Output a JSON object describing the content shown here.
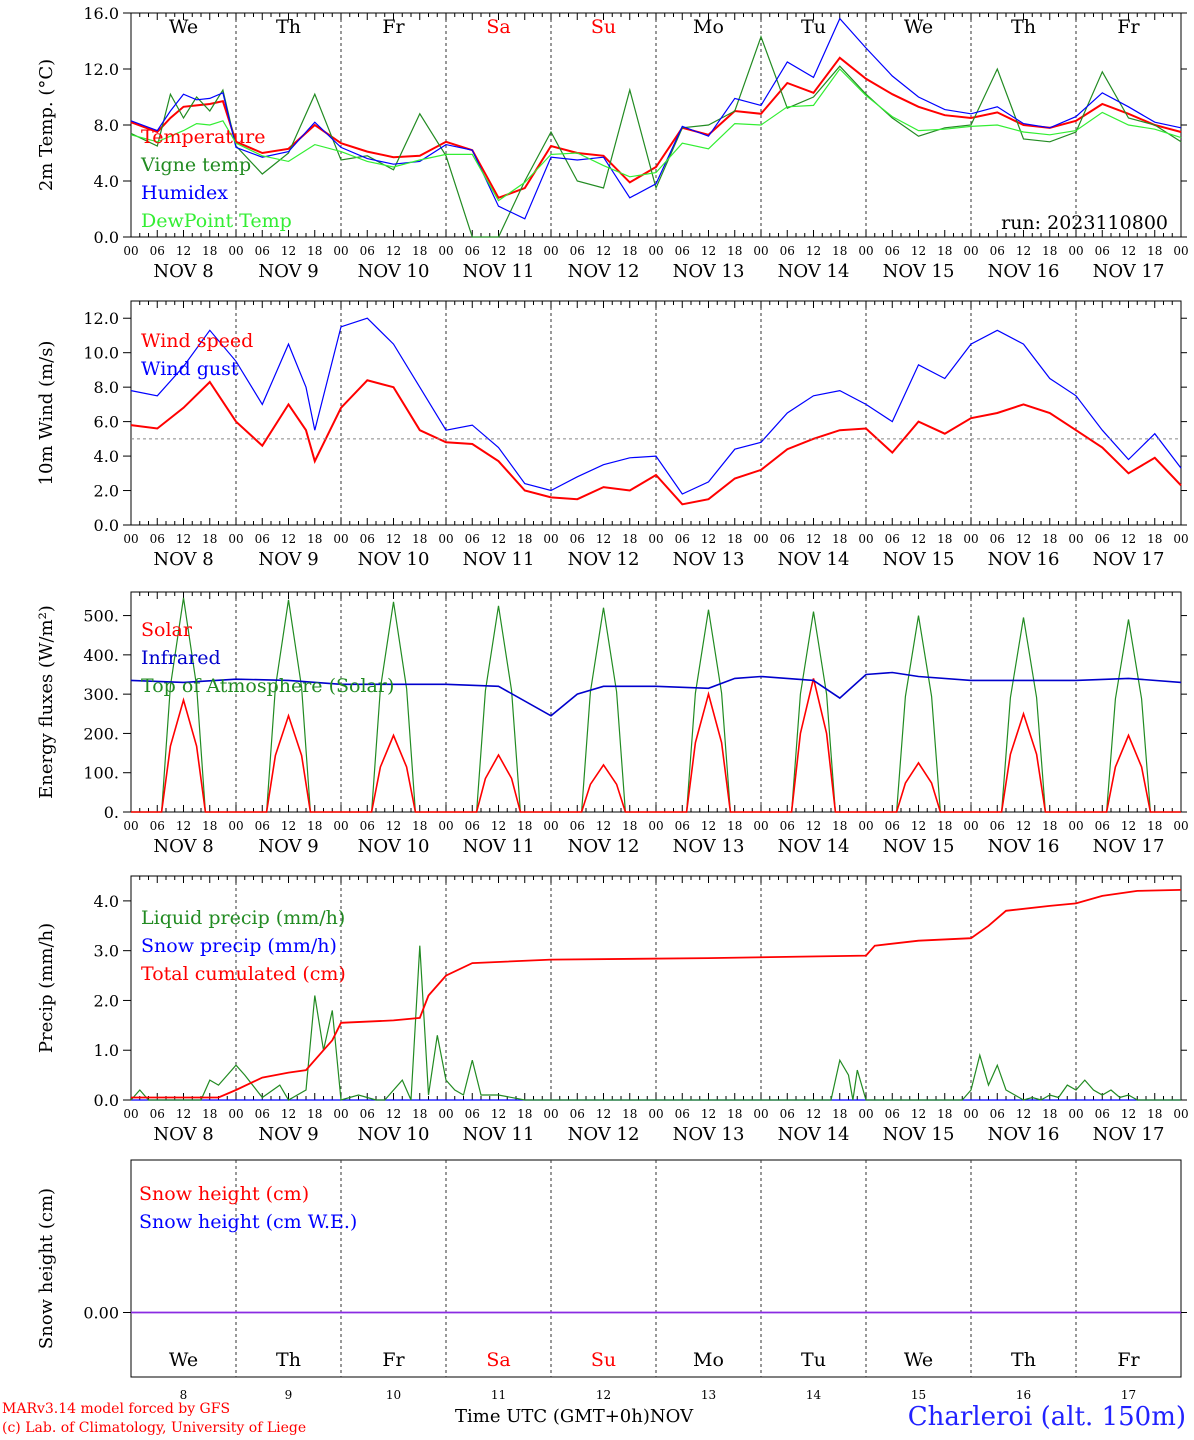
{
  "run_label": "run: 2023110800",
  "x_axis_title": "Time UTC (GMT+0h)",
  "x_axis_month": "NOV",
  "station": "Charleroi (alt. 150m)",
  "credit_line1": "MARv3.14 model forced by GFS",
  "credit_line2": "(c) Lab. of Climatology, University of Liege",
  "weekdays": [
    "We",
    "Th",
    "Fr",
    "Sa",
    "Su",
    "Mo",
    "Tu",
    "We",
    "Th",
    "Fr"
  ],
  "weekend_color": "#ff0000",
  "date_labels": [
    "NOV  8",
    "NOV  9",
    "NOV 10",
    "NOV 11",
    "NOV 12",
    "NOV 13",
    "NOV 14",
    "NOV 15",
    "NOV 16",
    "NOV 17"
  ],
  "hour_labels": [
    "00",
    "06",
    "12",
    "18"
  ],
  "bottom_day_numbers": [
    "8",
    "9",
    "10",
    "11",
    "12",
    "13",
    "14",
    "15",
    "16",
    "17"
  ],
  "chart_data": [
    {
      "type": "line",
      "ylabel": "2m Temp. (°C)",
      "ylim": [
        0,
        16
      ],
      "yticks": [
        "0.0",
        "4.0",
        "8.0",
        "12.0",
        "16.0"
      ],
      "x_hours": [
        0,
        6,
        9,
        12,
        15,
        18,
        21,
        24,
        30,
        36,
        42,
        48,
        54,
        60,
        66,
        72,
        78,
        84,
        90,
        96,
        102,
        108,
        114,
        120,
        126,
        132,
        138,
        144,
        150,
        156,
        162,
        168,
        174,
        180,
        186,
        192,
        198,
        204,
        210,
        216,
        222,
        228,
        234,
        240
      ],
      "series": [
        {
          "name": "Temperature",
          "color": "#ff0000",
          "values": [
            8.2,
            7.5,
            8.5,
            9.3,
            9.4,
            9.5,
            9.7,
            6.8,
            6.0,
            6.3,
            8.0,
            6.7,
            6.1,
            5.7,
            5.8,
            6.8,
            6.2,
            2.8,
            3.5,
            6.5,
            6.0,
            5.8,
            3.9,
            5.0,
            7.8,
            7.3,
            9.0,
            8.8,
            11.0,
            10.3,
            12.8,
            11.3,
            10.2,
            9.3,
            8.7,
            8.5,
            8.9,
            8.0,
            7.8,
            8.3,
            9.5,
            8.8,
            8.0,
            7.5
          ]
        },
        {
          "name": "Vigne temp",
          "color": "#228b22",
          "values": [
            7.4,
            6.5,
            10.2,
            8.5,
            10.0,
            9.0,
            10.5,
            6.5,
            4.5,
            6.0,
            10.2,
            5.5,
            5.8,
            4.8,
            8.8,
            5.8,
            0.0,
            -0.5,
            4.0,
            7.5,
            4.0,
            3.5,
            10.5,
            3.5,
            7.8,
            8.0,
            9.0,
            14.3,
            9.2,
            10.0,
            12.2,
            10.2,
            8.5,
            7.2,
            7.8,
            8.0,
            12.0,
            7.0,
            6.8,
            7.5,
            11.8,
            8.5,
            8.0,
            6.8
          ]
        },
        {
          "name": "Humidex",
          "color": "#0000ff",
          "values": [
            8.3,
            7.6,
            9.0,
            10.2,
            9.8,
            9.9,
            10.3,
            6.4,
            5.7,
            6.1,
            8.2,
            6.4,
            5.6,
            5.2,
            5.4,
            6.6,
            6.2,
            2.2,
            1.3,
            5.7,
            5.5,
            5.7,
            2.8,
            3.8,
            7.9,
            7.2,
            9.9,
            9.4,
            12.5,
            11.4,
            15.6,
            13.5,
            11.5,
            10.0,
            9.1,
            8.8,
            9.3,
            8.1,
            7.8,
            8.6,
            10.3,
            9.3,
            8.2,
            7.8
          ]
        },
        {
          "name": "DewPoint Temp",
          "color": "#33ee33",
          "values": [
            7.3,
            6.8,
            7.2,
            7.6,
            8.1,
            8.0,
            8.3,
            6.7,
            5.8,
            5.4,
            6.6,
            6.1,
            5.4,
            5.0,
            5.5,
            5.9,
            5.9,
            2.6,
            3.9,
            5.9,
            6.0,
            5.1,
            4.3,
            4.6,
            6.7,
            6.3,
            8.1,
            8.0,
            9.3,
            9.4,
            12.0,
            10.1,
            8.6,
            7.6,
            7.7,
            7.9,
            8.0,
            7.5,
            7.3,
            7.6,
            8.9,
            8.0,
            7.7,
            7.1
          ]
        }
      ]
    },
    {
      "type": "line",
      "ylabel": "10m Wind (m/s)",
      "ylim": [
        0,
        13
      ],
      "yticks": [
        "0.0",
        "2.0",
        "4.0",
        "6.0",
        "8.0",
        "10.0",
        "12.0"
      ],
      "reference_line": 5.0,
      "x_hours": [
        0,
        6,
        12,
        18,
        24,
        30,
        36,
        40,
        42,
        48,
        54,
        60,
        66,
        72,
        78,
        84,
        90,
        96,
        102,
        108,
        114,
        120,
        126,
        132,
        138,
        144,
        150,
        156,
        162,
        168,
        174,
        180,
        186,
        192,
        198,
        204,
        210,
        216,
        222,
        228,
        234,
        240
      ],
      "series": [
        {
          "name": "Wind speed",
          "color": "#ff0000",
          "values": [
            5.8,
            5.6,
            6.8,
            8.3,
            6.0,
            4.6,
            7.0,
            5.5,
            3.7,
            6.8,
            8.4,
            8.0,
            5.5,
            4.8,
            4.7,
            3.7,
            2.0,
            1.6,
            1.5,
            2.2,
            2.0,
            2.9,
            1.2,
            1.5,
            2.7,
            3.2,
            4.4,
            5.0,
            5.5,
            5.6,
            4.2,
            6.0,
            5.3,
            6.2,
            6.5,
            7.0,
            6.5,
            5.5,
            4.5,
            3.0,
            3.9,
            2.3
          ]
        },
        {
          "name": "Wind gust",
          "color": "#0000ff",
          "values": [
            7.8,
            7.5,
            9.2,
            11.3,
            9.5,
            7.0,
            10.5,
            8.0,
            5.5,
            11.5,
            12.0,
            10.5,
            8.0,
            5.5,
            5.8,
            4.5,
            2.4,
            2.0,
            2.8,
            3.5,
            3.9,
            4.0,
            1.8,
            2.5,
            4.4,
            4.8,
            6.5,
            7.5,
            7.8,
            7.0,
            6.0,
            9.3,
            8.5,
            10.5,
            11.3,
            10.5,
            8.5,
            7.5,
            5.5,
            3.8,
            5.3,
            3.3
          ]
        }
      ]
    },
    {
      "type": "line",
      "ylabel": "Energy fluxes (W/m²)",
      "ylim": [
        0,
        560
      ],
      "yticks": [
        "0.",
        "100.",
        "200.",
        "300.",
        "400.",
        "500."
      ],
      "solar_peaks": [
        285,
        245,
        195,
        145,
        120,
        300,
        340,
        125,
        250,
        195
      ],
      "toa_peaks": [
        545,
        540,
        535,
        525,
        520,
        515,
        510,
        500,
        495,
        490
      ],
      "series": [
        {
          "name": "Solar",
          "color": "#ff0000"
        },
        {
          "name": "Infrared",
          "color": "#0000cc",
          "x_hours": [
            0,
            12,
            24,
            36,
            48,
            60,
            72,
            84,
            96,
            102,
            108,
            120,
            132,
            138,
            144,
            156,
            162,
            168,
            174,
            180,
            192,
            204,
            216,
            228,
            240
          ],
          "values": [
            335,
            330,
            338,
            335,
            325,
            325,
            325,
            320,
            245,
            300,
            320,
            320,
            315,
            340,
            345,
            335,
            290,
            350,
            355,
            345,
            335,
            335,
            335,
            340,
            330
          ]
        },
        {
          "name": "Top of Atmosphere (Solar)",
          "color": "#228b22"
        }
      ]
    },
    {
      "type": "line",
      "ylabel": "Precip (mm/h)",
      "ylim": [
        0,
        4.5
      ],
      "yticks": [
        "0.0",
        "1.0",
        "2.0",
        "3.0",
        "4.0"
      ],
      "series": [
        {
          "name": "Liquid precip (mm/h)",
          "color": "#228b22",
          "x_hours": [
            0,
            2,
            4,
            6,
            16,
            18,
            20,
            22,
            24,
            26,
            30,
            34,
            36,
            40,
            42,
            44,
            46,
            48,
            52,
            54,
            56,
            58,
            62,
            64,
            66,
            68,
            70,
            72,
            74,
            76,
            78,
            80,
            84,
            90,
            100,
            160,
            162,
            164,
            165,
            166,
            168,
            170,
            190,
            192,
            194,
            196,
            198,
            200,
            202,
            204,
            206,
            208,
            210,
            212,
            214,
            216,
            218,
            220,
            222,
            224,
            226,
            228,
            230,
            240
          ],
          "values": [
            0,
            0.2,
            0,
            0,
            0,
            0.4,
            0.3,
            0.5,
            0.7,
            0.5,
            0.05,
            0.3,
            0,
            0.2,
            2.1,
            1.0,
            1.8,
            0,
            0.1,
            0.05,
            0,
            0,
            0.4,
            0,
            3.1,
            0.1,
            1.3,
            0.4,
            0.2,
            0.1,
            0.8,
            0.1,
            0.1,
            0,
            0,
            0,
            0.8,
            0.5,
            0,
            0.6,
            0,
            0,
            0,
            0.2,
            0.9,
            0.3,
            0.7,
            0.2,
            0.1,
            0,
            0.05,
            0,
            0.1,
            0.05,
            0.3,
            0.2,
            0.4,
            0.2,
            0.1,
            0.2,
            0.05,
            0.1,
            0,
            0
          ]
        },
        {
          "name": "Snow precip (mm/h)",
          "color": "#0000ff",
          "x_hours": [
            0,
            240
          ],
          "values": [
            0,
            0
          ]
        },
        {
          "name": "Total cumulated (cm)",
          "color": "#ff0000",
          "x_hours": [
            0,
            20,
            24,
            30,
            36,
            40,
            44,
            46,
            48,
            60,
            66,
            68,
            72,
            78,
            96,
            132,
            168,
            170,
            180,
            192,
            196,
            200,
            210,
            216,
            222,
            230,
            240
          ],
          "values": [
            0.05,
            0.05,
            0.2,
            0.45,
            0.55,
            0.6,
            1.0,
            1.2,
            1.55,
            1.6,
            1.65,
            2.1,
            2.5,
            2.75,
            2.82,
            2.85,
            2.9,
            3.1,
            3.2,
            3.25,
            3.5,
            3.8,
            3.9,
            3.95,
            4.1,
            4.2,
            4.22
          ]
        }
      ]
    },
    {
      "type": "line",
      "ylabel": "Snow height (cm)",
      "yticks": [
        "0.00"
      ],
      "series": [
        {
          "name": "Snow height (cm)",
          "color": "#ff0000",
          "values": [
            0,
            0
          ]
        },
        {
          "name": "Snow height (cm W.E.)",
          "color": "#0000ff",
          "values": [
            0,
            0
          ]
        }
      ]
    }
  ]
}
